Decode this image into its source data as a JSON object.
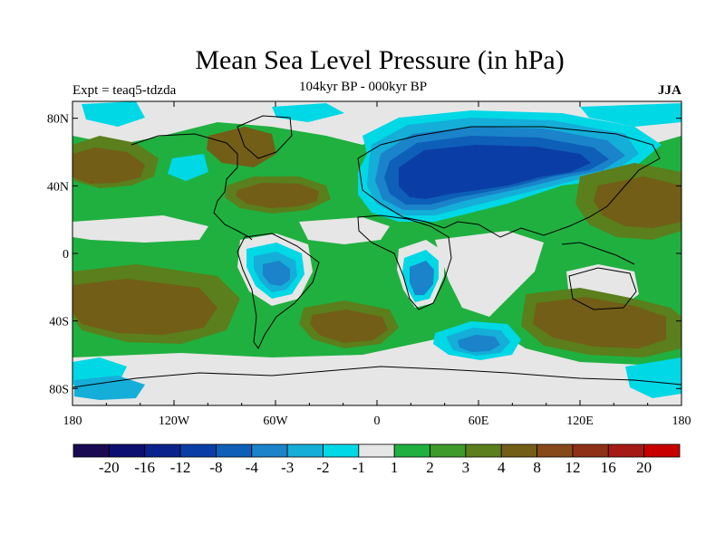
{
  "title": "Mean Sea Level Pressure (in hPa)",
  "left_label": "Expt = teaq5-tdzda",
  "center_label": "104kyr BP - 000kyr BP",
  "right_label": "JJA",
  "axes": {
    "x_ticks": [
      "180",
      "120W",
      "60W",
      "0",
      "60E",
      "120E",
      "180"
    ],
    "y_ticks": [
      "80N",
      "40N",
      "0",
      "40S",
      "80S"
    ]
  },
  "colorbar": {
    "colors": [
      "#1a0a52",
      "#0c0f70",
      "#0a238c",
      "#0a3ea6",
      "#0e5fb8",
      "#1a83c9",
      "#14aed8",
      "#00d8e6",
      "#e6e6e6",
      "#20b040",
      "#3e9a2b",
      "#5a7f1c",
      "#725e17",
      "#87481a",
      "#8e2f18",
      "#a51a14",
      "#c80000"
    ],
    "labels": [
      "-20",
      "-16",
      "-12",
      "-8",
      "-4",
      "-3",
      "-2",
      "-1",
      "1",
      "2",
      "3",
      "4",
      "8",
      "12",
      "16",
      "20"
    ]
  }
}
